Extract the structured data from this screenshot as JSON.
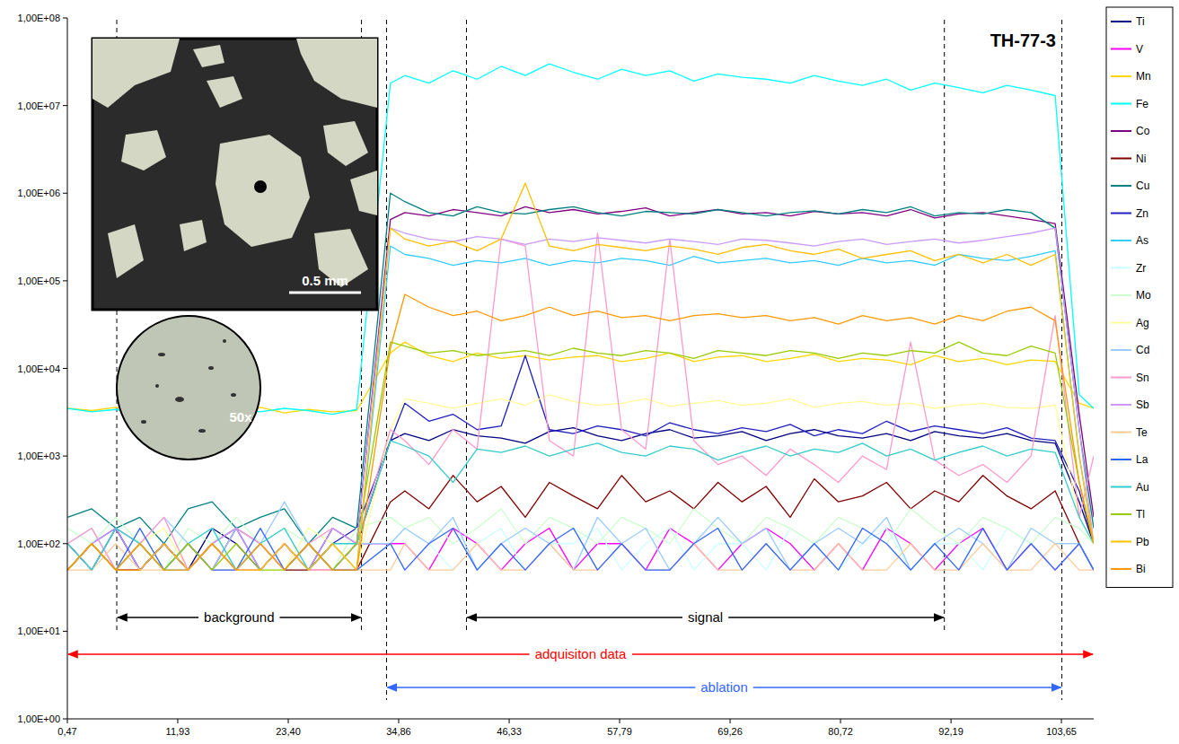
{
  "chart_data": {
    "type": "line",
    "title": "TH-77-3",
    "log": "y",
    "grid": false,
    "legend": "right",
    "xlim": [
      0.47,
      107
    ],
    "xticks": [
      {
        "value": 0.47,
        "label": "0,47"
      },
      {
        "value": 11.93,
        "label": "11,93"
      },
      {
        "value": 23.4,
        "label": "23,40"
      },
      {
        "value": 34.86,
        "label": "34,86"
      },
      {
        "value": 46.33,
        "label": "46,33"
      },
      {
        "value": 57.79,
        "label": "57,79"
      },
      {
        "value": 69.26,
        "label": "69,26"
      },
      {
        "value": 80.72,
        "label": "80,72"
      },
      {
        "value": 92.19,
        "label": "92,19"
      },
      {
        "value": 103.65,
        "label": "103,65"
      }
    ],
    "ylim": [
      1,
      100000000
    ],
    "yticks": [
      {
        "value": 1,
        "label": "1,00E+00"
      },
      {
        "value": 10,
        "label": "1,00E+01"
      },
      {
        "value": 100,
        "label": "1,00E+02"
      },
      {
        "value": 1000,
        "label": "1,00E+03"
      },
      {
        "value": 10000,
        "label": "1,00E+04"
      },
      {
        "value": 100000,
        "label": "1,00E+05"
      },
      {
        "value": 1000000,
        "label": "1,00E+06"
      },
      {
        "value": 10000000,
        "label": "1,00E+07"
      },
      {
        "value": 100000000,
        "label": "1,00E+08"
      }
    ],
    "x": [
      0.5,
      3,
      5.5,
      8,
      10.5,
      13,
      15.5,
      18,
      20.5,
      23,
      25.5,
      28,
      30.5,
      34,
      35.5,
      38,
      40.5,
      43,
      45.5,
      48,
      50.5,
      53,
      55.5,
      58,
      60.5,
      63,
      65.5,
      68,
      70.5,
      73,
      75.5,
      78,
      80.5,
      83,
      85.5,
      88,
      90.5,
      93,
      95.5,
      98,
      100.5,
      103,
      105.5,
      107
    ],
    "series": [
      {
        "name": "Ti",
        "color": "#000080",
        "values": [
          100,
          50,
          150,
          50,
          100,
          50,
          150,
          100,
          50,
          100,
          50,
          150,
          100,
          1500,
          1800,
          1500,
          2000,
          1700,
          1600,
          1400,
          1900,
          2100,
          1700,
          1500,
          1800,
          2000,
          1600,
          1700,
          1900,
          1500,
          1800,
          2000,
          1700,
          1600,
          1800,
          1500,
          1900,
          1700,
          1600,
          1800,
          1500,
          1400,
          300,
          100
        ]
      },
      {
        "name": "V",
        "color": "#FF00FF",
        "values": [
          50,
          100,
          50,
          50,
          100,
          50,
          100,
          50,
          50,
          100,
          50,
          50,
          100,
          100,
          100,
          50,
          150,
          100,
          50,
          100,
          150,
          50,
          100,
          100,
          50,
          150,
          100,
          50,
          100,
          150,
          100,
          50,
          100,
          50,
          150,
          100,
          50,
          100,
          150,
          50,
          100,
          50,
          100,
          50
        ]
      },
      {
        "name": "Mn",
        "color": "#FFD700",
        "values": [
          3500,
          3300,
          3600,
          3200,
          3400,
          3500,
          3000,
          3300,
          3600,
          3100,
          3400,
          3200,
          3300,
          15000,
          20000,
          14000,
          12000,
          15000,
          13000,
          14000,
          12500,
          13500,
          14000,
          12000,
          13000,
          15000,
          12000,
          13500,
          14000,
          12000,
          13000,
          14500,
          12000,
          13000,
          12500,
          11000,
          14000,
          12000,
          13000,
          11000,
          12500,
          12000,
          4000,
          3500
        ]
      },
      {
        "name": "Fe",
        "color": "#00FFFF",
        "values": [
          3500,
          3200,
          3400,
          3000,
          3300,
          3600,
          3100,
          3400,
          3200,
          3500,
          3300,
          3000,
          3400,
          18000000,
          22000000,
          18000000,
          25000000,
          20000000,
          28000000,
          22000000,
          30000000,
          24000000,
          20000000,
          26000000,
          22000000,
          25000000,
          19000000,
          23000000,
          21000000,
          20000000,
          18000000,
          22000000,
          19000000,
          17000000,
          20000000,
          15000000,
          18000000,
          16000000,
          14000000,
          17000000,
          15000000,
          13000000,
          5000,
          3500
        ]
      },
      {
        "name": "Co",
        "color": "#800080",
        "values": [
          100,
          50,
          150,
          100,
          50,
          100,
          50,
          150,
          100,
          50,
          100,
          50,
          100,
          500000,
          600000,
          550000,
          650000,
          600000,
          550000,
          700000,
          600000,
          650000,
          580000,
          620000,
          680000,
          550000,
          600000,
          650000,
          580000,
          600000,
          550000,
          620000,
          580000,
          600000,
          550000,
          650000,
          520000,
          580000,
          600000,
          550000,
          500000,
          450000,
          3000,
          200
        ]
      },
      {
        "name": "Ni",
        "color": "#800000",
        "values": [
          50,
          100,
          50,
          50,
          100,
          50,
          100,
          50,
          100,
          50,
          50,
          100,
          50,
          300,
          400,
          250,
          600,
          300,
          450,
          200,
          500,
          350,
          250,
          600,
          300,
          400,
          250,
          500,
          300,
          450,
          200,
          550,
          300,
          350,
          500,
          250,
          400,
          300,
          600,
          350,
          250,
          400,
          100,
          50
        ]
      },
      {
        "name": "Cu",
        "color": "#008080",
        "values": [
          200,
          250,
          150,
          200,
          100,
          250,
          300,
          150,
          200,
          250,
          100,
          200,
          150,
          1000000,
          800000,
          600000,
          550000,
          700000,
          600000,
          580000,
          650000,
          700000,
          600000,
          550000,
          620000,
          600000,
          580000,
          650000,
          600000,
          550000,
          600000,
          630000,
          580000,
          650000,
          600000,
          700000,
          550000,
          600000,
          580000,
          650000,
          600000,
          400000,
          2000,
          150
        ]
      },
      {
        "name": "Zn",
        "color": "#2020C0",
        "values": [
          50,
          100,
          150,
          50,
          100,
          50,
          100,
          150,
          50,
          100,
          50,
          100,
          150,
          1500,
          4000,
          2500,
          3000,
          2000,
          2200,
          14000,
          2000,
          1800,
          2200,
          2000,
          1700,
          2400,
          2000,
          1800,
          2100,
          1900,
          2300,
          1700,
          2000,
          1800,
          2500,
          1900,
          2200,
          2000,
          1800,
          2100,
          1600,
          1500,
          400,
          100
        ]
      },
      {
        "name": "As",
        "color": "#33CCFF",
        "values": [
          50,
          100,
          50,
          100,
          50,
          50,
          100,
          50,
          100,
          50,
          100,
          50,
          50,
          250000,
          200000,
          180000,
          150000,
          170000,
          160000,
          180000,
          150000,
          170000,
          160000,
          180000,
          170000,
          150000,
          190000,
          160000,
          170000,
          180000,
          160000,
          170000,
          150000,
          180000,
          160000,
          170000,
          150000,
          200000,
          180000,
          170000,
          190000,
          220000,
          1000,
          100
        ]
      },
      {
        "name": "Zr",
        "color": "#CCFFFF",
        "values": [
          100,
          50,
          150,
          100,
          50,
          100,
          150,
          50,
          100,
          50,
          150,
          100,
          50,
          100,
          150,
          100,
          50,
          100,
          150,
          50,
          100,
          100,
          150,
          50,
          100,
          150,
          50,
          100,
          100,
          50,
          150,
          100,
          50,
          100,
          150,
          50,
          100,
          100,
          50,
          150,
          100,
          50,
          100,
          50
        ]
      },
      {
        "name": "Mo",
        "color": "#CCFFCC",
        "values": [
          150,
          100,
          200,
          100,
          50,
          150,
          100,
          200,
          100,
          150,
          100,
          50,
          150,
          200,
          150,
          200,
          100,
          150,
          250,
          100,
          200,
          150,
          100,
          200,
          150,
          100,
          250,
          150,
          100,
          200,
          150,
          100,
          200,
          150,
          100,
          250,
          150,
          100,
          200,
          150,
          100,
          200,
          150,
          100
        ]
      },
      {
        "name": "Ag",
        "color": "#FFFF99",
        "values": [
          50,
          100,
          50,
          100,
          150,
          50,
          100,
          50,
          100,
          50,
          150,
          100,
          50,
          2000,
          4500,
          4000,
          3500,
          4000,
          4500,
          3800,
          5000,
          4200,
          3800,
          4000,
          4500,
          3700,
          4000,
          4300,
          3800,
          4000,
          4500,
          3600,
          4000,
          4200,
          3800,
          4000,
          3500,
          3800,
          4000,
          3600,
          3500,
          3800,
          200,
          100
        ]
      },
      {
        "name": "Cd",
        "color": "#99CCFF",
        "values": [
          100,
          150,
          50,
          100,
          200,
          100,
          50,
          150,
          100,
          300,
          100,
          50,
          100,
          100,
          150,
          100,
          200,
          50,
          100,
          150,
          100,
          50,
          200,
          100,
          150,
          50,
          100,
          200,
          100,
          150,
          50,
          100,
          150,
          100,
          200,
          50,
          100,
          150,
          100,
          50,
          150,
          100,
          100,
          50
        ]
      },
      {
        "name": "Sn",
        "color": "#FF99CC",
        "values": [
          100,
          150,
          50,
          100,
          200,
          50,
          100,
          150,
          100,
          50,
          100,
          150,
          100,
          2000,
          1500,
          800,
          2000,
          1200,
          300000,
          250000,
          1500,
          1000,
          350000,
          2000,
          1200,
          300000,
          1500,
          800,
          1000,
          600,
          1200,
          800,
          500,
          1000,
          700,
          20000,
          900,
          600,
          800,
          500,
          1000,
          40000,
          200,
          1000
        ]
      },
      {
        "name": "Sb",
        "color": "#CC99FF",
        "values": [
          50,
          100,
          150,
          50,
          100,
          50,
          100,
          150,
          50,
          100,
          50,
          150,
          100,
          400000,
          350000,
          300000,
          280000,
          320000,
          300000,
          260000,
          300000,
          280000,
          310000,
          290000,
          270000,
          300000,
          280000,
          260000,
          300000,
          290000,
          270000,
          250000,
          280000,
          300000,
          260000,
          280000,
          300000,
          270000,
          290000,
          320000,
          350000,
          400000,
          2000,
          100
        ]
      },
      {
        "name": "Te",
        "color": "#FFCC99",
        "values": [
          50,
          50,
          100,
          50,
          50,
          100,
          50,
          50,
          50,
          100,
          50,
          50,
          50,
          50,
          100,
          50,
          50,
          100,
          50,
          50,
          100,
          50,
          50,
          100,
          50,
          50,
          100,
          50,
          50,
          100,
          50,
          50,
          100,
          50,
          50,
          100,
          50,
          50,
          100,
          50,
          50,
          100,
          50,
          50
        ]
      },
      {
        "name": "La",
        "color": "#3366FF",
        "values": [
          50,
          100,
          50,
          150,
          50,
          100,
          50,
          50,
          150,
          50,
          100,
          50,
          50,
          100,
          50,
          100,
          150,
          50,
          100,
          50,
          100,
          150,
          50,
          100,
          50,
          50,
          100,
          150,
          50,
          100,
          50,
          100,
          50,
          150,
          100,
          50,
          100,
          50,
          150,
          50,
          100,
          50,
          100,
          50
        ]
      },
      {
        "name": "Au",
        "color": "#33CCCC",
        "values": [
          100,
          50,
          150,
          100,
          50,
          100,
          150,
          50,
          100,
          150,
          50,
          100,
          100,
          1500,
          1300,
          1000,
          500,
          1200,
          1100,
          1300,
          1000,
          1200,
          1400,
          1100,
          1000,
          1300,
          1200,
          900,
          1100,
          1300,
          1000,
          1200,
          1100,
          1400,
          1000,
          1200,
          900,
          1100,
          1300,
          1000,
          1200,
          1100,
          200,
          100
        ]
      },
      {
        "name": "Tl",
        "color": "#99CC00",
        "values": [
          50,
          100,
          50,
          100,
          50,
          100,
          50,
          100,
          50,
          50,
          100,
          50,
          100,
          20000,
          18000,
          15000,
          16000,
          14000,
          15000,
          16000,
          14000,
          17000,
          15000,
          14000,
          16000,
          15000,
          13000,
          16000,
          15000,
          14000,
          16000,
          15000,
          13000,
          15000,
          14000,
          16000,
          15000,
          20000,
          15000,
          14000,
          18000,
          15000,
          500,
          100
        ]
      },
      {
        "name": "Pb",
        "color": "#FFC000",
        "values": [
          50,
          100,
          50,
          50,
          100,
          50,
          100,
          50,
          50,
          100,
          50,
          100,
          50,
          400000,
          300000,
          250000,
          280000,
          220000,
          300000,
          1300000,
          250000,
          220000,
          260000,
          240000,
          220000,
          250000,
          230000,
          200000,
          240000,
          260000,
          220000,
          200000,
          230000,
          180000,
          200000,
          220000,
          170000,
          200000,
          160000,
          200000,
          150000,
          200000,
          1000,
          100
        ]
      },
      {
        "name": "Bi",
        "color": "#FF9900",
        "values": [
          50,
          100,
          50,
          100,
          50,
          50,
          100,
          50,
          100,
          50,
          100,
          50,
          50,
          17000,
          70000,
          50000,
          40000,
          45000,
          35000,
          40000,
          50000,
          40000,
          45000,
          38000,
          40000,
          35000,
          40000,
          42000,
          38000,
          40000,
          35000,
          38000,
          32000,
          40000,
          35000,
          38000,
          32000,
          40000,
          35000,
          45000,
          50000,
          35000,
          500,
          100
        ]
      }
    ],
    "annotations": [
      {
        "text": "background",
        "start": 5.6,
        "end": 31.0,
        "color": "#000000",
        "line_style": "dashed"
      },
      {
        "text": "signal",
        "start": 41.9,
        "end": 91.5,
        "color": "#000000",
        "line_style": "dashed"
      },
      {
        "text": "adquisiton data",
        "start": 0.47,
        "end": 107,
        "color": "#FF0000"
      },
      {
        "text": "ablation",
        "start": 33.6,
        "end": 103.7,
        "color": "#3366FF",
        "line_style": "dashed"
      }
    ],
    "insets": [
      {
        "text": "0.5 mm",
        "type": "photo"
      },
      {
        "text": "50x",
        "type": "lens"
      }
    ]
  }
}
